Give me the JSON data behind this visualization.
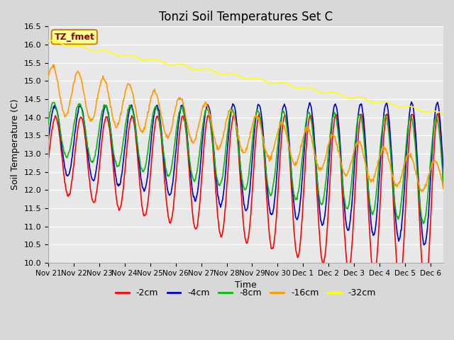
{
  "title": "Tonzi Soil Temperatures Set C",
  "xlabel": "Time",
  "ylabel": "Soil Temperature (C)",
  "ylim": [
    10.0,
    16.5
  ],
  "bg_color": "#e0e0e0",
  "plot_bg_color": "#e8e8e8",
  "annotation_text": "TZ_fmet",
  "annotation_color": "#8b0000",
  "annotation_bg": "#ffff99",
  "annotation_border": "#cc8800",
  "series": [
    {
      "label": "-2cm",
      "color": "#ff0000"
    },
    {
      "label": "-4cm",
      "color": "#0000cc"
    },
    {
      "label": "-8cm",
      "color": "#00bb00"
    },
    {
      "label": "-16cm",
      "color": "#ff9900"
    },
    {
      "label": "-32cm",
      "color": "#ffff00"
    }
  ],
  "tick_labels": [
    "Nov 21",
    "Nov 22",
    "Nov 23",
    "Nov 24",
    "Nov 25",
    "Nov 26",
    "Nov 27",
    "Nov 28",
    "Nov 29",
    "Nov 30",
    "Dec 1",
    "Dec 2",
    "Dec 3",
    "Dec 4",
    "Dec 5",
    "Dec 6"
  ],
  "n_days": 15.5,
  "points_per_day": 48
}
